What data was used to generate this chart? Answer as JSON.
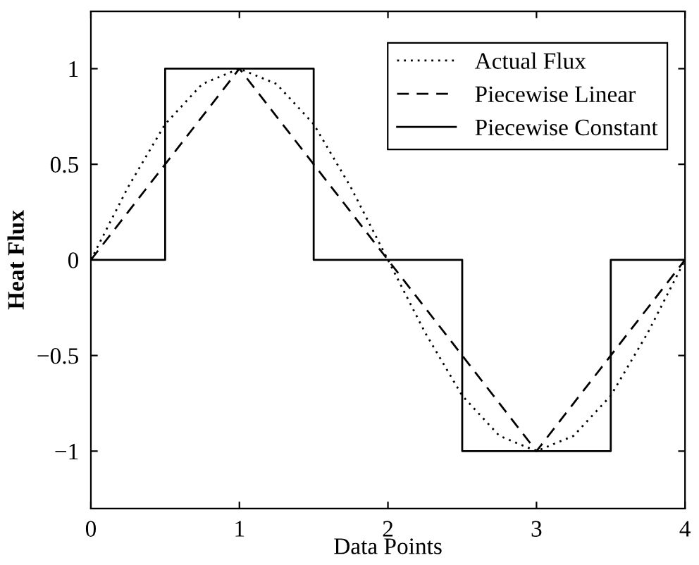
{
  "chart_data": {
    "type": "line",
    "xlabel": "Data Points",
    "ylabel": "Heat Flux",
    "xlim": [
      0,
      4
    ],
    "ylim": [
      -1.3,
      1.3
    ],
    "xticks": [
      0,
      1,
      2,
      3,
      4
    ],
    "yticks": [
      {
        "value": -1,
        "label": "−1"
      },
      {
        "value": -0.5,
        "label": "−0.5"
      },
      0,
      0.5,
      1
    ],
    "grid": false,
    "legend": "top right",
    "marker": "none",
    "series": [
      {
        "name": "Actual Flux",
        "color": "#000000",
        "line_style": "dotted",
        "x": [
          0,
          0.25,
          0.5,
          0.75,
          1,
          1.25,
          1.5,
          1.75,
          2,
          2.25,
          2.5,
          2.75,
          3,
          3.25,
          3.5,
          3.75,
          4
        ],
        "values": [
          0,
          0.38,
          0.71,
          0.92,
          1,
          0.92,
          0.71,
          0.38,
          0,
          -0.38,
          -0.71,
          -0.92,
          -1,
          -0.92,
          -0.71,
          -0.38,
          0
        ]
      },
      {
        "name": "Piecewise Linear",
        "color": "#000000",
        "line_style": "dashed",
        "x": [
          0,
          1,
          3,
          4
        ],
        "values": [
          0,
          1,
          -1,
          0
        ]
      },
      {
        "name": "Piecewise Constant",
        "color": "#000000",
        "line_style": "solid",
        "x": [
          0,
          0.5,
          0.5,
          1.5,
          1.5,
          2.5,
          2.5,
          3.5,
          3.5,
          4
        ],
        "values": [
          0,
          0,
          1,
          1,
          0,
          0,
          -1,
          -1,
          0,
          0
        ]
      }
    ]
  }
}
